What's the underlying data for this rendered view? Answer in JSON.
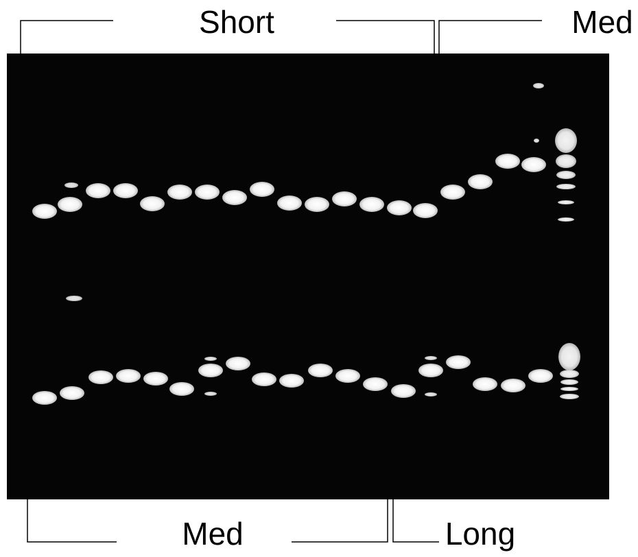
{
  "labels": {
    "top_left": "Short",
    "top_right": "Med",
    "bottom_left": "Med",
    "bottom_right": "Long"
  }
}
